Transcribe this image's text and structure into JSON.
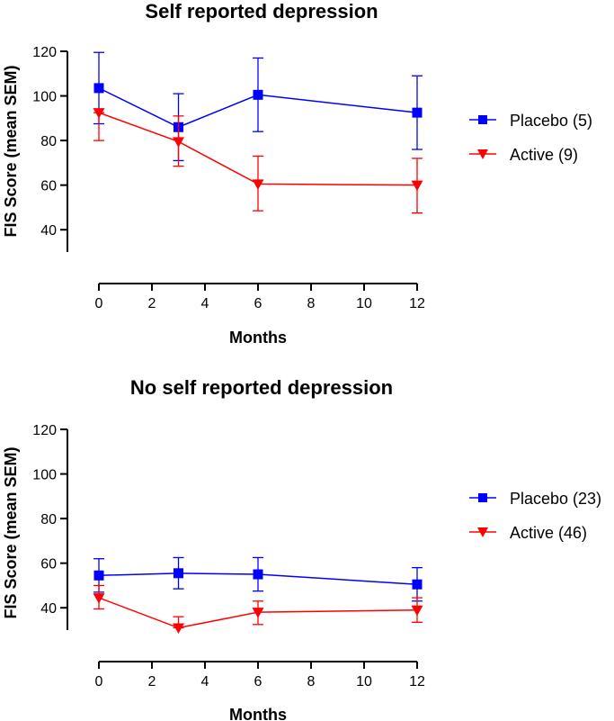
{
  "chart_data": [
    {
      "type": "line",
      "title": "Self reported depression",
      "xlabel": "Months",
      "ylabel": "FIS Score (mean SEM)",
      "x": [
        0,
        3,
        6,
        12
      ],
      "xticks": [
        0,
        2,
        4,
        6,
        8,
        10,
        12
      ],
      "yticks": [
        40,
        60,
        80,
        100,
        120
      ],
      "xlim": [
        0,
        12
      ],
      "ylim": [
        30,
        120
      ],
      "legend_position": "right",
      "series": [
        {
          "name": "Placebo (5)",
          "color": "#0000ff",
          "marker": "square",
          "values": [
            103.5,
            86,
            100.5,
            92.5
          ],
          "error_upper": [
            119.5,
            101,
            117,
            109
          ],
          "error_lower": [
            87.5,
            71,
            84,
            76
          ]
        },
        {
          "name": "Active (9)",
          "color": "#ff0000",
          "marker": "triangle-down",
          "values": [
            92.5,
            79.5,
            60.5,
            60
          ],
          "error_upper": [
            92.5,
            91,
            73,
            72
          ],
          "error_lower": [
            80,
            68.5,
            48.5,
            47.5
          ]
        }
      ]
    },
    {
      "type": "line",
      "title": "No self reported depression",
      "xlabel": "Months",
      "ylabel": "FIS Score (mean SEM)",
      "x": [
        0,
        3,
        6,
        12
      ],
      "xticks": [
        0,
        2,
        4,
        6,
        8,
        10,
        12
      ],
      "yticks": [
        40,
        60,
        80,
        100,
        120
      ],
      "xlim": [
        0,
        12
      ],
      "ylim": [
        30,
        120
      ],
      "legend_position": "right",
      "series": [
        {
          "name": "Placebo (23)",
          "color": "#0000ff",
          "marker": "square",
          "values": [
            54.5,
            55.5,
            55,
            50.5
          ],
          "error_upper": [
            62,
            62.5,
            62.5,
            58
          ],
          "error_lower": [
            47,
            48.5,
            47.5,
            43
          ]
        },
        {
          "name": "Active (46)",
          "color": "#ff0000",
          "marker": "triangle-down",
          "values": [
            44.5,
            31,
            38,
            39
          ],
          "error_upper": [
            50,
            36,
            43,
            44.5
          ],
          "error_lower": [
            39.5,
            31,
            32.5,
            33.5
          ]
        }
      ]
    }
  ]
}
